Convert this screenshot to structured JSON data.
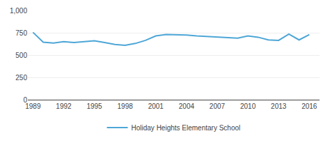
{
  "chart_data": {
    "type": "line",
    "x": [
      1989,
      1990,
      1991,
      1992,
      1993,
      1994,
      1995,
      1996,
      1997,
      1998,
      1999,
      2000,
      2001,
      2002,
      2003,
      2004,
      2005,
      2006,
      2007,
      2008,
      2009,
      2010,
      2011,
      2012,
      2013,
      2014,
      2015,
      2016
    ],
    "series": [
      {
        "name": "Holiday Heights Elementary School",
        "color": "#4da6d7",
        "values": [
          755,
          645,
          635,
          650,
          640,
          650,
          660,
          640,
          620,
          610,
          630,
          665,
          715,
          730,
          730,
          725,
          715,
          710,
          700,
          695,
          690,
          715,
          700,
          670,
          665,
          735,
          670,
          730
        ]
      }
    ],
    "xlim": [
      1988.5,
      2017.0
    ],
    "xticks": [
      1989,
      1992,
      1995,
      1998,
      2001,
      2004,
      2007,
      2010,
      2013,
      2016
    ],
    "ylim": [
      0,
      1000
    ],
    "yticks": [
      0,
      250,
      500,
      750,
      {
        "value": 1000,
        "label": "1,000"
      }
    ],
    "grid": true,
    "legend": "bottom"
  }
}
